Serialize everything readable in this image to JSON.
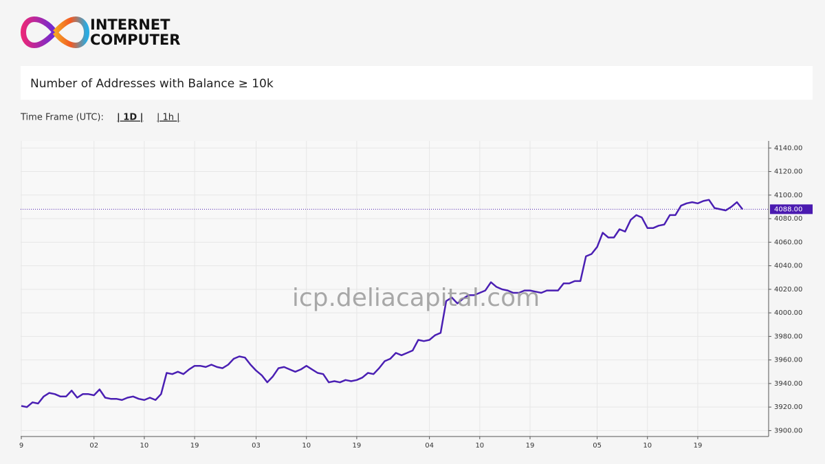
{
  "brand": {
    "line1": "INTERNET",
    "line2": "COMPUTER"
  },
  "panel_title": "Number of Addresses with Balance ≥ 10k",
  "time_frame": {
    "label": "Time Frame (UTC):",
    "options": [
      "| 1D |",
      "| 1h |"
    ],
    "active": 0
  },
  "watermark": "icp.deliacapital.com",
  "chart_data": {
    "type": "line",
    "categories": [
      "9",
      null,
      null,
      null,
      null,
      null,
      null,
      null,
      null,
      null,
      null,
      null,
      null,
      "02",
      null,
      null,
      null,
      null,
      null,
      null,
      null,
      null,
      "10",
      null,
      null,
      null,
      null,
      null,
      null,
      null,
      null,
      "19",
      null,
      null,
      null,
      null,
      null,
      null,
      null,
      null,
      null,
      null,
      "03",
      null,
      null,
      null,
      null,
      null,
      null,
      null,
      null,
      "10",
      null,
      null,
      null,
      null,
      null,
      null,
      null,
      null,
      "19",
      null,
      null,
      null,
      null,
      null,
      null,
      null,
      null,
      null,
      null,
      null,
      null,
      "04",
      null,
      null,
      null,
      null,
      null,
      null,
      null,
      null,
      "10",
      null,
      null,
      null,
      null,
      null,
      null,
      null,
      null,
      "19",
      null,
      null,
      null,
      null,
      null,
      null,
      null,
      null,
      null,
      null,
      null,
      "05",
      null,
      null,
      null,
      null,
      null,
      null,
      null,
      null,
      "10",
      null,
      null,
      null,
      null,
      null,
      null,
      null,
      null,
      "19",
      null,
      null,
      null,
      null,
      null,
      null,
      null,
      null
    ],
    "series": [
      {
        "name": "Addresses",
        "color": "#4a1fb3",
        "values": [
          3921,
          3920,
          3924,
          3923,
          3929,
          3932,
          3931,
          3929,
          3929,
          3934,
          3928,
          3931,
          3931,
          3930,
          3935,
          3928,
          3927,
          3927,
          3926,
          3928,
          3929,
          3927,
          3926,
          3928,
          3926,
          3931,
          3949,
          3948,
          3950,
          3948,
          3952,
          3955,
          3955,
          3954,
          3956,
          3954,
          3953,
          3956,
          3961,
          3963,
          3962,
          3956,
          3951,
          3947,
          3941,
          3946,
          3953,
          3954,
          3952,
          3950,
          3952,
          3955,
          3952,
          3949,
          3948,
          3941,
          3942,
          3941,
          3943,
          3942,
          3943,
          3945,
          3949,
          3948,
          3953,
          3959,
          3961,
          3966,
          3964,
          3966,
          3968,
          3977,
          3976,
          3977,
          3981,
          3983,
          4010,
          4013,
          4008,
          4012,
          4015,
          4015,
          4017,
          4019,
          4026,
          4022,
          4020,
          4019,
          4017,
          4017,
          4019,
          4019,
          4018,
          4017,
          4019,
          4019,
          4019,
          4025,
          4025,
          4027,
          4027,
          4048,
          4050,
          4056,
          4068,
          4064,
          4064,
          4071,
          4069,
          4079,
          4083,
          4081,
          4072,
          4072,
          4074,
          4075,
          4083,
          4083,
          4091,
          4093,
          4094,
          4093,
          4095,
          4096,
          4089,
          4088,
          4087,
          4090,
          4094,
          4088
        ]
      }
    ],
    "ylim": [
      3895,
      4146
    ],
    "yticks": [
      {
        "value": 3900,
        "label": "3900.00"
      },
      {
        "value": 3920,
        "label": "3920.00"
      },
      {
        "value": 3940,
        "label": "3940.00"
      },
      {
        "value": 3960,
        "label": "3960.00"
      },
      {
        "value": 3980,
        "label": "3980.00"
      },
      {
        "value": 4000,
        "label": "4000.00"
      },
      {
        "value": 4020,
        "label": "4020.00"
      },
      {
        "value": 4040,
        "label": "4040.00"
      },
      {
        "value": 4060,
        "label": "4060.00"
      },
      {
        "value": 4080,
        "label": "4080.00"
      },
      {
        "value": 4100,
        "label": "4100.00"
      },
      {
        "value": 4120,
        "label": "4120.00"
      },
      {
        "value": 4140,
        "label": "4140.00"
      }
    ],
    "current": {
      "value": 4088,
      "label": "4088.00",
      "color": "#4a1ab0"
    },
    "grid": true
  }
}
